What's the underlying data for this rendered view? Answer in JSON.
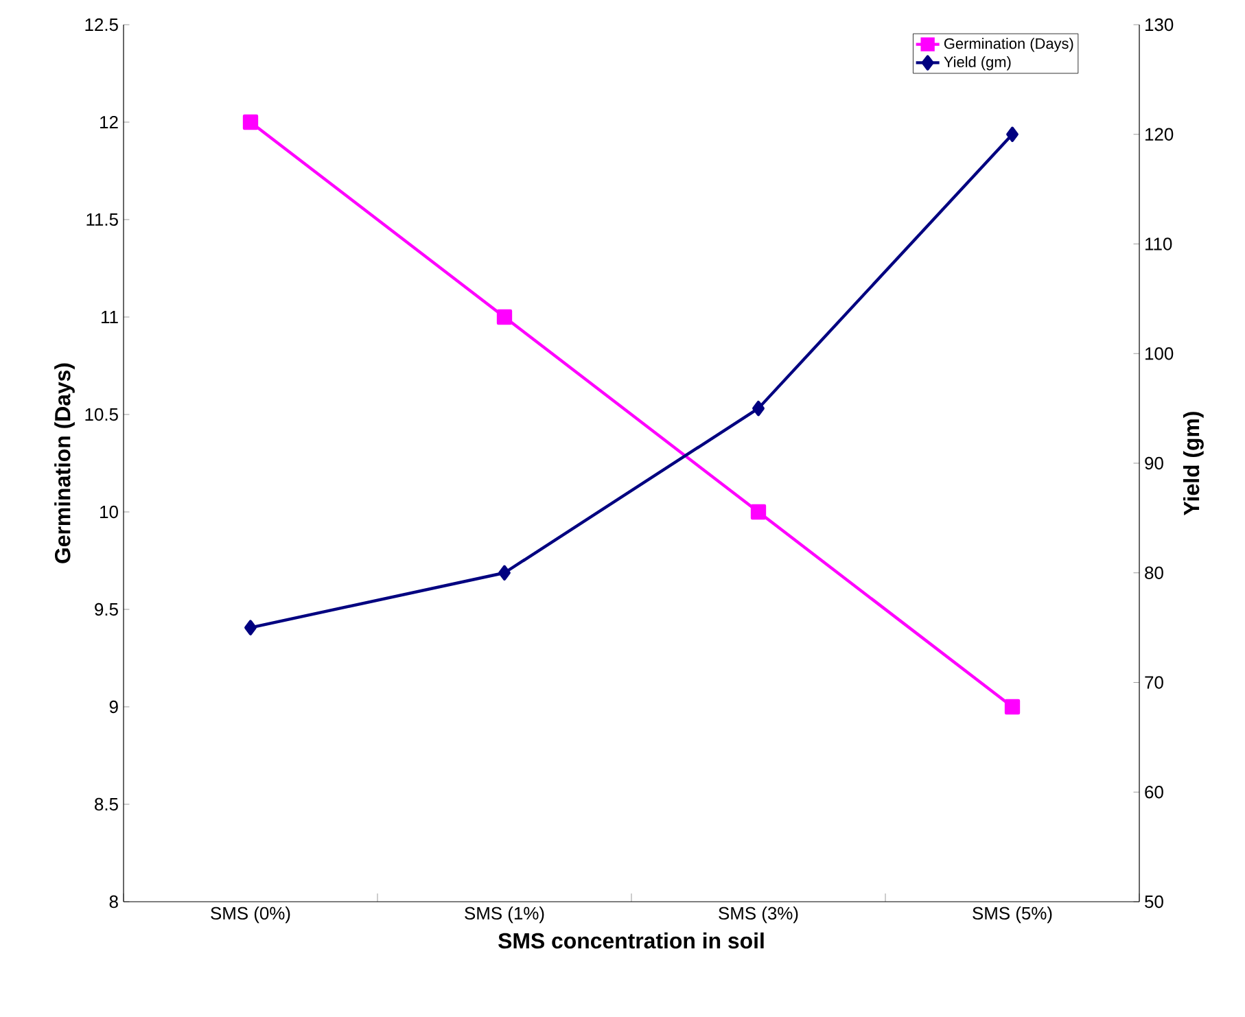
{
  "chart_data": {
    "type": "line",
    "xlabel": "SMS concentration in soil",
    "ylabel": "Germination (Days)",
    "y2label": "Yield (gm)",
    "categories": [
      "SMS (0%)",
      "SMS (1%)",
      "SMS (3%)",
      "SMS (5%)"
    ],
    "series": [
      {
        "name": "Germination (Days)",
        "color": "#ff00ff",
        "values": [
          12,
          11,
          10,
          9
        ],
        "marker": "square"
      },
      {
        "name": "Yield (gm)",
        "color": "#000080",
        "values": [
          75,
          80,
          95,
          120
        ],
        "marker": "diamond",
        "axis": "y2"
      }
    ],
    "ylim": [
      8,
      12.5
    ],
    "yticks": [
      8,
      8.5,
      9,
      9.5,
      10,
      10.5,
      11,
      11.5,
      12,
      12.5
    ],
    "y2lim": [
      50,
      130
    ],
    "y2ticks": [
      50,
      60,
      70,
      80,
      90,
      100,
      110,
      120,
      130
    ],
    "legend": "top right",
    "grid": false,
    "line_style": "solid"
  }
}
